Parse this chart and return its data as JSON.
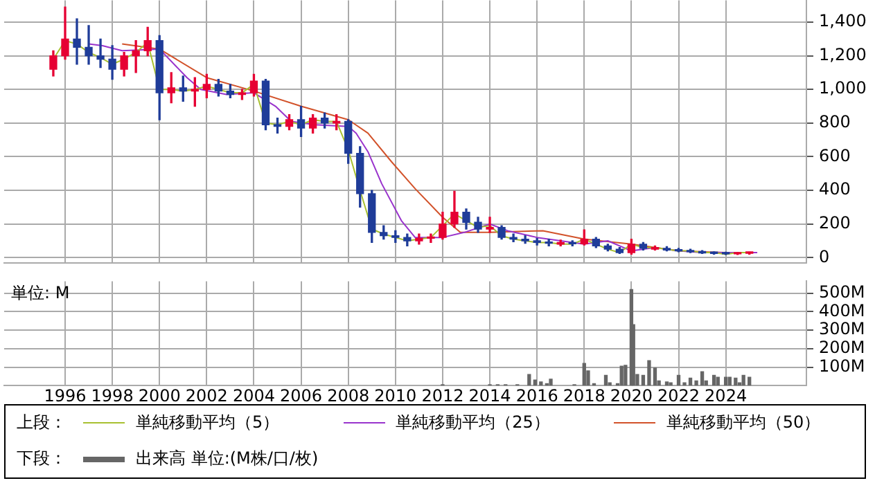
{
  "chart_data": [
    {
      "type": "candlestick",
      "x": [
        "1995-07",
        "1996-01",
        "1996-07",
        "1997-01",
        "1997-07",
        "1998-01",
        "1998-07",
        "1999-01",
        "1999-07",
        "2000-01",
        "2000-07",
        "2001-01",
        "2001-07",
        "2002-01",
        "2002-07",
        "2003-01",
        "2003-07",
        "2004-01",
        "2004-07",
        "2005-01",
        "2005-07",
        "2006-01",
        "2006-07",
        "2007-01",
        "2007-07",
        "2008-01",
        "2008-07",
        "2009-01",
        "2009-07",
        "2010-01",
        "2010-07",
        "2011-01",
        "2011-07",
        "2012-01",
        "2012-07",
        "2013-01",
        "2013-07",
        "2014-01",
        "2014-07",
        "2015-01",
        "2015-07",
        "2016-01",
        "2016-07",
        "2017-01",
        "2017-07",
        "2018-01",
        "2018-07",
        "2019-01",
        "2019-07",
        "2020-01",
        "2020-07",
        "2021-01",
        "2021-07",
        "2022-01",
        "2022-07",
        "2023-01",
        "2023-07",
        "2024-01",
        "2024-07",
        "2025-01"
      ],
      "ohlc": [
        [
          1120,
          1230,
          1080,
          1200
        ],
        [
          1200,
          1490,
          1180,
          1300
        ],
        [
          1300,
          1420,
          1150,
          1250
        ],
        [
          1250,
          1380,
          1150,
          1200
        ],
        [
          1200,
          1300,
          1130,
          1180
        ],
        [
          1180,
          1260,
          1060,
          1120
        ],
        [
          1120,
          1220,
          1080,
          1200
        ],
        [
          1200,
          1290,
          1100,
          1230
        ],
        [
          1230,
          1370,
          1200,
          1290
        ],
        [
          1290,
          1320,
          820,
          980
        ],
        [
          980,
          1100,
          920,
          1010
        ],
        [
          1010,
          1080,
          930,
          990
        ],
        [
          990,
          1070,
          900,
          1000
        ],
        [
          1000,
          1090,
          950,
          1030
        ],
        [
          1030,
          1060,
          960,
          990
        ],
        [
          990,
          1030,
          950,
          970
        ],
        [
          970,
          1000,
          940,
          980
        ],
        [
          980,
          1090,
          960,
          1050
        ],
        [
          1050,
          1060,
          760,
          790
        ],
        [
          790,
          830,
          740,
          780
        ],
        [
          780,
          850,
          760,
          820
        ],
        [
          820,
          900,
          720,
          770
        ],
        [
          770,
          850,
          740,
          830
        ],
        [
          830,
          860,
          770,
          800
        ],
        [
          800,
          850,
          760,
          810
        ],
        [
          810,
          820,
          560,
          620
        ],
        [
          620,
          660,
          300,
          380
        ],
        [
          380,
          400,
          90,
          150
        ],
        [
          150,
          190,
          110,
          130
        ],
        [
          130,
          160,
          90,
          120
        ],
        [
          120,
          140,
          70,
          100
        ],
        [
          100,
          140,
          80,
          115
        ],
        [
          115,
          140,
          90,
          120
        ],
        [
          120,
          270,
          110,
          200
        ],
        [
          200,
          395,
          180,
          270
        ],
        [
          270,
          290,
          170,
          210
        ],
        [
          210,
          240,
          150,
          170
        ],
        [
          170,
          240,
          150,
          180
        ],
        [
          180,
          190,
          110,
          120
        ],
        [
          120,
          140,
          95,
          110
        ],
        [
          110,
          130,
          85,
          100
        ],
        [
          100,
          115,
          75,
          90
        ],
        [
          90,
          110,
          70,
          85
        ],
        [
          80,
          105,
          70,
          90
        ],
        [
          85,
          100,
          70,
          82
        ],
        [
          82,
          165,
          75,
          110
        ],
        [
          110,
          120,
          60,
          70
        ],
        [
          70,
          80,
          40,
          50
        ],
        [
          50,
          60,
          25,
          30
        ],
        [
          30,
          110,
          20,
          80
        ],
        [
          80,
          90,
          45,
          55
        ],
        [
          50,
          70,
          45,
          60
        ],
        [
          55,
          65,
          40,
          45
        ],
        [
          45,
          55,
          35,
          40
        ],
        [
          40,
          50,
          30,
          35
        ],
        [
          35,
          42,
          25,
          28
        ],
        [
          28,
          35,
          20,
          25
        ],
        [
          25,
          32,
          18,
          22
        ],
        [
          22,
          30,
          18,
          26
        ],
        [
          26,
          32,
          20,
          27
        ]
      ],
      "colors": [
        "#e60033",
        "#e60033",
        "#1f3c99",
        "#1f3c99",
        "#1f3c99",
        "#1f3c99",
        "#e60033",
        "#e60033",
        "#e60033",
        "#1f3c99",
        "#e60033",
        "#1f3c99",
        "#e60033",
        "#e60033",
        "#1f3c99",
        "#1f3c99",
        "#e60033",
        "#e60033",
        "#1f3c99",
        "#1f3c99",
        "#e60033",
        "#1f3c99",
        "#e60033",
        "#1f3c99",
        "#e60033",
        "#1f3c99",
        "#1f3c99",
        "#1f3c99",
        "#1f3c99",
        "#1f3c99",
        "#1f3c99",
        "#e60033",
        "#e60033",
        "#e60033",
        "#e60033",
        "#1f3c99",
        "#1f3c99",
        "#e60033",
        "#1f3c99",
        "#1f3c99",
        "#1f3c99",
        "#1f3c99",
        "#1f3c99",
        "#e60033",
        "#1f3c99",
        "#e60033",
        "#1f3c99",
        "#1f3c99",
        "#1f3c99",
        "#e60033",
        "#1f3c99",
        "#e60033",
        "#1f3c99",
        "#1f3c99",
        "#1f3c99",
        "#1f3c99",
        "#1f3c99",
        "#1f3c99",
        "#e60033",
        "#e60033"
      ],
      "series": [
        {
          "name": "単純移動平均（5）",
          "type": "line",
          "color": "#a8c030",
          "x": [
            "1995-07",
            "1996-01",
            "1996-07",
            "1997-01",
            "1997-07",
            "1998-01",
            "1998-07",
            "1999-01",
            "1999-07",
            "2000-01",
            "2000-07",
            "2001-01",
            "2001-07",
            "2002-01",
            "2002-07",
            "2003-01",
            "2003-07",
            "2004-01",
            "2004-07",
            "2005-01",
            "2005-07",
            "2006-01",
            "2006-07",
            "2007-01",
            "2007-07",
            "2008-01",
            "2008-07",
            "2009-01",
            "2009-07",
            "2010-01",
            "2010-07",
            "2011-01",
            "2011-07",
            "2012-01",
            "2012-07",
            "2013-01",
            "2013-07",
            "2014-01",
            "2014-07",
            "2015-01",
            "2015-07",
            "2016-01",
            "2016-07",
            "2017-01",
            "2017-07",
            "2018-01",
            "2018-07",
            "2019-01",
            "2019-07",
            "2020-01",
            "2020-07",
            "2021-01",
            "2021-07",
            "2022-01",
            "2022-07",
            "2023-01",
            "2023-07",
            "2024-01",
            "2024-07",
            "2025-01"
          ],
          "values": [
            1180,
            1290,
            1270,
            1220,
            1190,
            1150,
            1180,
            1220,
            1280,
            1000,
            1000,
            990,
            1000,
            1020,
            1000,
            980,
            980,
            1030,
            800,
            790,
            810,
            790,
            820,
            810,
            810,
            640,
            400,
            170,
            140,
            120,
            100,
            110,
            120,
            190,
            260,
            220,
            180,
            190,
            130,
            110,
            100,
            90,
            90,
            80,
            80,
            110,
            80,
            50,
            30,
            80,
            60,
            60,
            50,
            40,
            40,
            30,
            30,
            20,
            30,
            30
          ]
        },
        {
          "name": "単純移動平均（25）",
          "type": "line",
          "color": "#9933cc",
          "x": [
            "1997-01",
            "1997-08",
            "1998-06",
            "2000-01",
            "2001-03",
            "2001-10",
            "2002-11",
            "2004-01",
            "2004-12",
            "2005-08",
            "2006-08",
            "2008-01",
            "2008-05",
            "2008-11",
            "2009-06",
            "2010-04",
            "2010-11",
            "2012-01",
            "2012-12",
            "2014-01",
            "2014-10",
            "2016-01",
            "2017-01",
            "2018-01",
            "2019-01",
            "2020-01",
            "2021-01",
            "2022-01",
            "2023-01",
            "2024-01",
            "2025-05"
          ],
          "values": [
            1270,
            1260,
            1230,
            1240,
            1070,
            1000,
            970,
            980,
            900,
            810,
            790,
            780,
            740,
            630,
            440,
            220,
            120,
            120,
            150,
            200,
            160,
            120,
            100,
            80,
            100,
            40,
            60,
            40,
            30,
            30,
            30
          ]
        },
        {
          "name": "単純移動平均（50）",
          "type": "line",
          "color": "#d2522a",
          "x": [
            "1998-06",
            "2000-01",
            "2002-01",
            "2004-01",
            "2006-01",
            "2008-01",
            "2008-11",
            "2009-11",
            "2010-11",
            "2012-01",
            "2012-10",
            "2014-01",
            "2016-04",
            "2018-01",
            "2020-01",
            "2022-01",
            "2024-01",
            "2025-05"
          ],
          "values": [
            1270,
            1240,
            1070,
            990,
            900,
            820,
            740,
            570,
            410,
            240,
            150,
            150,
            160,
            110,
            80,
            40,
            30,
            30
          ]
        }
      ],
      "xlim": [
        "1993-06",
        "2027-06"
      ],
      "xticks": [
        "1996",
        "1998",
        "2000",
        "2002",
        "2004",
        "2006",
        "2008",
        "2010",
        "2012",
        "2014",
        "2016",
        "2018",
        "2020",
        "2022",
        "2024"
      ],
      "ylim": [
        -30,
        1530
      ],
      "yticks": [
        0,
        200,
        400,
        600,
        800,
        {
          "value": 1000,
          "label": "1,000"
        },
        {
          "value": 1200,
          "label": "1,200"
        },
        {
          "value": 1400,
          "label": "1,400"
        }
      ],
      "grid": true,
      "legend": "bottom",
      "legend_title": "上段：",
      "tick_labels": "y",
      "marker": "none"
    },
    {
      "type": "bar",
      "x": [
        "2012-01",
        "2014-01",
        "2014-05",
        "2014-09",
        "2015-03",
        "2015-09",
        "2015-12",
        "2016-03",
        "2016-06",
        "2016-08",
        "2017-08",
        "2018-01",
        "2018-03",
        "2018-06",
        "2018-12",
        "2019-02",
        "2019-06",
        "2019-08",
        "2019-10",
        "2020-01",
        "2020-02",
        "2020-04",
        "2020-07",
        "2020-10",
        "2021-01",
        "2021-03",
        "2021-07",
        "2021-09",
        "2022-01",
        "2022-04",
        "2022-07",
        "2022-10",
        "2023-01",
        "2023-03",
        "2023-07",
        "2023-09",
        "2024-01",
        "2024-03",
        "2024-06",
        "2024-08",
        "2024-10",
        "2025-01"
      ],
      "series": [
        {
          "name": "出来高 単位:(M株/口/枚)",
          "color": "#666666",
          "values": [
            5,
            5,
            5,
            5,
            5,
            60,
            30,
            20,
            10,
            35,
            5,
            120,
            80,
            10,
            55,
            15,
            10,
            105,
            110,
            520,
            330,
            60,
            55,
            135,
            95,
            25,
            20,
            15,
            55,
            15,
            40,
            25,
            75,
            25,
            55,
            45,
            45,
            45,
            40,
            15,
            55,
            45
          ]
        }
      ],
      "xlim": [
        "1993-06",
        "2027-06"
      ],
      "xticks": [
        "1996",
        "1998",
        "2000",
        "2002",
        "2004",
        "2006",
        "2008",
        "2010",
        "2012",
        "2014",
        "2016",
        "2018",
        "2020",
        "2022",
        "2024"
      ],
      "ylim": [
        0,
        565
      ],
      "yticks": [
        {
          "value": 100,
          "label": "100M"
        },
        {
          "value": 200,
          "label": "200M"
        },
        {
          "value": 300,
          "label": "300M"
        },
        {
          "value": 400,
          "label": "400M"
        },
        {
          "value": 500,
          "label": "500M"
        }
      ],
      "grid": true,
      "legend": "bottom",
      "legend_title": "下段：",
      "annotations": [
        "単位: M"
      ]
    }
  ]
}
